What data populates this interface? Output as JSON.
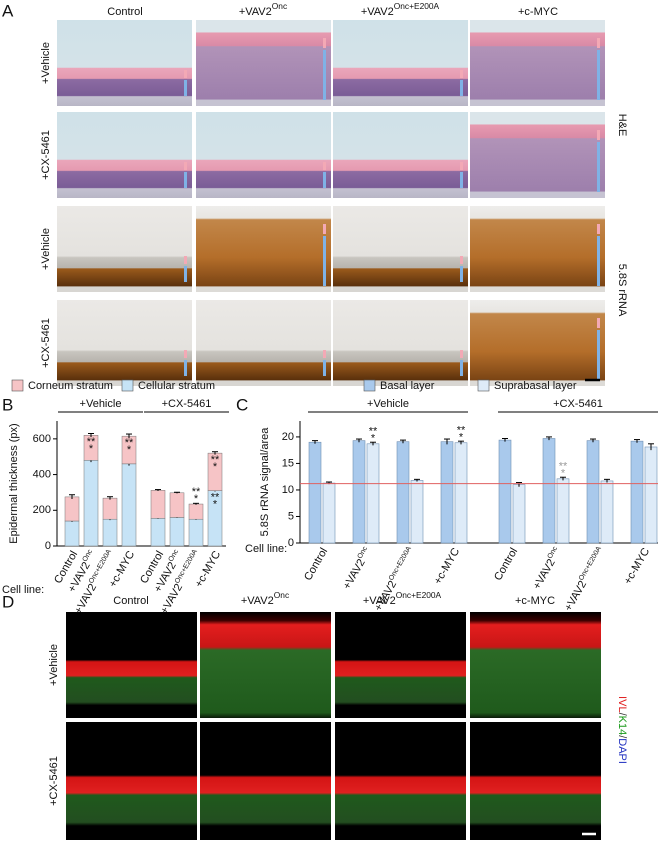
{
  "panels": {
    "a": "A",
    "b": "B",
    "c": "C",
    "d": "D"
  },
  "columns": [
    {
      "text": "Control"
    },
    {
      "text": "+VAV2",
      "sup": "Onc"
    },
    {
      "text": "+VAV2",
      "sup": "Onc+E200A"
    },
    {
      "text": "+c-MYC"
    }
  ],
  "panel_a": {
    "rows": [
      "+Vehicle",
      "+CX-5461",
      "+Vehicle",
      "+CX-5461"
    ],
    "stains": [
      "H&E",
      "5.8S rRNA"
    ]
  },
  "panel_d": {
    "rows": [
      "+Vehicle",
      "+CX-5461"
    ],
    "stain": [
      {
        "text": "IVL",
        "color": "#e02020"
      },
      {
        "text": "/",
        "color": "#333333"
      },
      {
        "text": "K14",
        "color": "#1a9a1a"
      },
      {
        "text": "/",
        "color": "#333333"
      },
      {
        "text": "DAPI",
        "color": "#2030c0"
      }
    ]
  },
  "chart_data": [
    {
      "type": "bar",
      "stacked": true,
      "y_label": "Epidermal thickness (px)",
      "x_label": "Cell line:",
      "groups": [
        {
          "name": "+Vehicle",
          "categories": [
            {
              "text": "Control"
            },
            {
              "text": "+VAV2",
              "sup": "Onc"
            },
            {
              "text": "+VAV2",
              "sup": "Onc+E200A"
            },
            {
              "text": "+c-MYC"
            }
          ]
        },
        {
          "name": "+CX-5461",
          "categories": [
            {
              "text": "Control"
            },
            {
              "text": "+VAV2",
              "sup": "Onc"
            },
            {
              "text": "+VAV2",
              "sup": "Onc+E200A"
            },
            {
              "text": "+c-MYC"
            }
          ]
        }
      ],
      "ylim": [
        0,
        700
      ],
      "yticks": [
        0,
        200,
        400,
        600
      ],
      "series": [
        {
          "name": "Corneum stratum",
          "color": "#f6c4c6",
          "values": [
            135,
            140,
            118,
            155,
            157,
            138,
            85,
            210
          ],
          "errors": [
            12,
            10,
            8,
            12,
            4,
            3,
            4,
            8
          ],
          "stars": [
            null,
            {
              "text": [
                "**",
                "*"
              ],
              "color": "#111111"
            },
            null,
            {
              "text": [
                "**",
                "*"
              ],
              "color": "#111111"
            },
            null,
            null,
            {
              "text": [
                "**",
                "*"
              ],
              "color": "#111111"
            },
            {
              "text": [
                "**",
                "*"
              ],
              "color": "#111111"
            }
          ]
        },
        {
          "name": "Cellular stratum",
          "color": "#c6e3f6",
          "values": [
            140,
            480,
            150,
            460,
            155,
            160,
            150,
            310
          ],
          "errors": [
            5,
            10,
            5,
            10,
            3,
            3,
            4,
            5
          ],
          "stars": [
            null,
            null,
            null,
            null,
            null,
            null,
            null,
            {
              "text": [
                "**",
                "*"
              ],
              "color": "#111111"
            }
          ]
        }
      ]
    },
    {
      "type": "bar",
      "stacked": false,
      "y_label": "5.8S rRNA signal/area",
      "x_label": "Cell line:",
      "groups": [
        {
          "name": "+Vehicle",
          "categories": [
            {
              "text": "Control"
            },
            {
              "text": "+VAV2",
              "sup": "Onc"
            },
            {
              "text": "+VAV2",
              "sup": "Onc+E200A"
            },
            {
              "text": "+c-MYC"
            }
          ]
        },
        {
          "name": "+CX-5461",
          "categories": [
            {
              "text": "Control"
            },
            {
              "text": "+VAV2",
              "sup": "Onc"
            },
            {
              "text": "+VAV2",
              "sup": "Onc+E200A"
            },
            {
              "text": "+c-MYC"
            }
          ]
        }
      ],
      "ylim": [
        0,
        23
      ],
      "yticks": [
        0,
        5,
        10,
        15,
        20
      ],
      "reference_line": {
        "value": 11.2,
        "color": "#e06060"
      },
      "series": [
        {
          "name": "Basal layer",
          "color": "#a9c9ec",
          "values": [
            19.0,
            19.3,
            19.1,
            19.1,
            19.4,
            19.7,
            19.3,
            19.2
          ],
          "errors": [
            0.3,
            0.3,
            0.3,
            0.5,
            0.3,
            0.3,
            0.3,
            0.3
          ],
          "stars": [
            null,
            null,
            null,
            null,
            null,
            null,
            null,
            null
          ]
        },
        {
          "name": "Suprabasal layer",
          "color": "#deebf8",
          "values": [
            11.3,
            18.7,
            11.8,
            18.9,
            11.0,
            12.1,
            11.7,
            18.1
          ],
          "errors": [
            0.2,
            0.3,
            0.2,
            0.3,
            0.4,
            0.3,
            0.3,
            0.6
          ],
          "stars": [
            null,
            {
              "text": [
                "**",
                "*"
              ],
              "color": "#111111"
            },
            null,
            {
              "text": [
                "**",
                "*"
              ],
              "color": "#111111"
            },
            null,
            {
              "text": [
                "**",
                "*"
              ],
              "color": "#999999"
            },
            null,
            null
          ]
        }
      ]
    }
  ]
}
